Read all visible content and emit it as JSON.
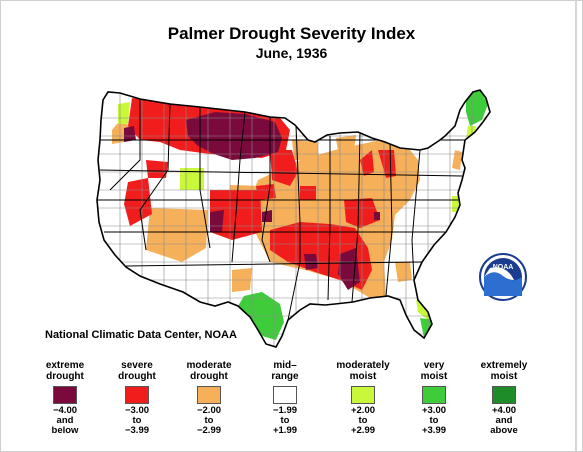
{
  "title": "Palmer Drought Severity Index",
  "subtitle": "June, 1936",
  "credit": "National Climatic Data Center, NOAA",
  "logo_text": "NOAA",
  "colors": {
    "extreme": "#7b0a3c",
    "severe": "#f11d1d",
    "moderate": "#f6b05a",
    "mid": "#ffffff",
    "moderately_moist": "#c9f73a",
    "very_moist": "#3fcc3a",
    "extremely_moist": "#1e8c28"
  },
  "legend": [
    {
      "label": [
        "extreme",
        "drought"
      ],
      "range": [
        "−4.00",
        "and",
        "below"
      ],
      "color": "#7b0a3c"
    },
    {
      "label": [
        "severe",
        "drought"
      ],
      "range": [
        "−3.00",
        "to",
        "−3.99"
      ],
      "color": "#f11d1d"
    },
    {
      "label": [
        "moderate",
        "drought"
      ],
      "range": [
        "−2.00",
        "to",
        "−2.99"
      ],
      "color": "#f6b05a"
    },
    {
      "label": [
        "mid–",
        "range"
      ],
      "range": [
        "−1.99",
        "to",
        "+1.99"
      ],
      "color": "#ffffff"
    },
    {
      "label": [
        "moderately",
        "moist"
      ],
      "range": [
        "+2.00",
        "to",
        "+2.99"
      ],
      "color": "#c9f73a"
    },
    {
      "label": [
        "very",
        "moist"
      ],
      "range": [
        "+3.00",
        "to",
        "+3.99"
      ],
      "color": "#3fcc3a"
    },
    {
      "label": [
        "extremely",
        "moist"
      ],
      "range": [
        "+4.00",
        "and",
        "above"
      ],
      "color": "#1e8c28"
    }
  ]
}
